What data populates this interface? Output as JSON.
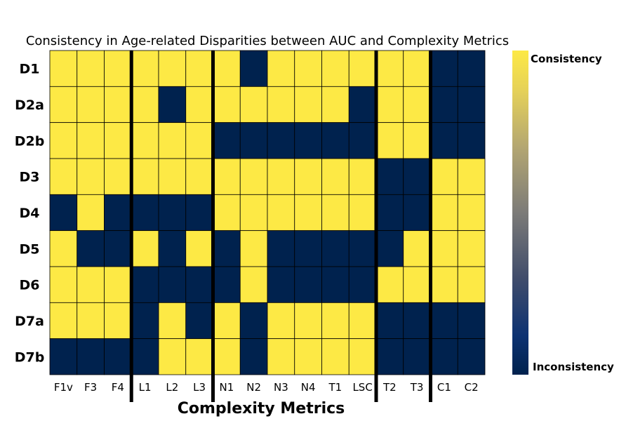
{
  "chart_data": {
    "type": "heatmap",
    "title": "Consistency in Age-related Disparities between AUC and Complexity Metrics",
    "xlabel": "Complexity Metrics",
    "ylabel": "",
    "rows": [
      "D1",
      "D2a",
      "D2b",
      "D3",
      "D4",
      "D5",
      "D6",
      "D7a",
      "D7b"
    ],
    "columns": [
      "F1v",
      "F3",
      "F4",
      "L1",
      "L2",
      "L3",
      "N1",
      "N2",
      "N3",
      "N4",
      "T1",
      "LSC",
      "T2",
      "T3",
      "C1",
      "C2"
    ],
    "values": [
      [
        1,
        1,
        1,
        1,
        1,
        1,
        1,
        0,
        1,
        1,
        1,
        1,
        1,
        1,
        0,
        0
      ],
      [
        1,
        1,
        1,
        1,
        0,
        1,
        1,
        1,
        1,
        1,
        1,
        0,
        1,
        1,
        0,
        0
      ],
      [
        1,
        1,
        1,
        1,
        1,
        1,
        0,
        0,
        0,
        0,
        0,
        0,
        1,
        1,
        0,
        0
      ],
      [
        1,
        1,
        1,
        1,
        1,
        1,
        1,
        1,
        1,
        1,
        1,
        1,
        0,
        0,
        1,
        1
      ],
      [
        0,
        1,
        0,
        0,
        0,
        0,
        1,
        1,
        1,
        1,
        1,
        1,
        0,
        0,
        1,
        1
      ],
      [
        1,
        0,
        0,
        1,
        0,
        1,
        0,
        1,
        0,
        0,
        0,
        0,
        0,
        1,
        1,
        1
      ],
      [
        1,
        1,
        1,
        0,
        0,
        0,
        0,
        1,
        0,
        0,
        0,
        0,
        1,
        1,
        1,
        1
      ],
      [
        1,
        1,
        1,
        0,
        1,
        0,
        1,
        0,
        1,
        1,
        1,
        1,
        0,
        0,
        0,
        0
      ],
      [
        0,
        0,
        0,
        0,
        1,
        1,
        1,
        0,
        1,
        1,
        1,
        1,
        0,
        0,
        0,
        0
      ]
    ],
    "group_separators_after_column": [
      3,
      6,
      12,
      14
    ],
    "colorbar": {
      "scale": "cividis",
      "high_label": "Consistency",
      "low_label": "Inconsistency",
      "high_color": "#FDE945",
      "low_color": "#00224E"
    },
    "grid": true,
    "legend": "colorbar-right"
  }
}
